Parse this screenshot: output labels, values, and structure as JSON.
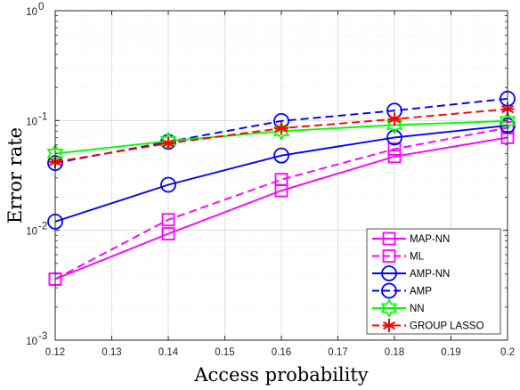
{
  "chart_data": {
    "type": "line",
    "xlabel": "Access probability",
    "ylabel": "Error rate",
    "xlim": [
      0.12,
      0.2
    ],
    "ylim": [
      0.001,
      1
    ],
    "y_scale": "log",
    "grid": true,
    "minor_grid": true,
    "legend_position": "bottom-right",
    "x_ticks": [
      "0.12",
      "0.13",
      "0.14",
      "0.15",
      "0.16",
      "0.17",
      "0.18",
      "0.19",
      "0.2"
    ],
    "y_ticks": [
      {
        "base": "10",
        "exp": "0"
      },
      {
        "base": "10",
        "exp": "-1"
      },
      {
        "base": "10",
        "exp": "-2"
      },
      {
        "base": "10",
        "exp": "-3"
      }
    ],
    "x": [
      0.12,
      0.14,
      0.16,
      0.18,
      0.2
    ],
    "series": [
      {
        "name": "MAP-NN",
        "color": "#ff00ff",
        "dash": "solid",
        "marker": "square",
        "values": [
          0.0036,
          0.0093,
          0.023,
          0.047,
          0.07
        ]
      },
      {
        "name": "ML",
        "color": "#ff00ff",
        "dash": "dashed",
        "marker": "square",
        "values": [
          0.0036,
          0.0125,
          0.029,
          0.055,
          0.086
        ]
      },
      {
        "name": "AMP-NN",
        "color": "#0000ff",
        "dash": "solid",
        "marker": "circle",
        "values": [
          0.012,
          0.026,
          0.048,
          0.07,
          0.09
        ]
      },
      {
        "name": "AMP",
        "color": "#0000ff",
        "dash": "dashed",
        "marker": "circle",
        "values": [
          0.041,
          0.064,
          0.099,
          0.123,
          0.158
        ]
      },
      {
        "name": "NN",
        "color": "#00ff00",
        "dash": "solid",
        "marker": "hexagram",
        "values": [
          0.05,
          0.065,
          0.08,
          0.091,
          0.099
        ]
      },
      {
        "name": "GROUP LASSO",
        "color": "#ff0000",
        "dash": "dashed",
        "marker": "asterisk",
        "values": [
          0.042,
          0.062,
          0.085,
          0.103,
          0.127
        ]
      }
    ]
  }
}
